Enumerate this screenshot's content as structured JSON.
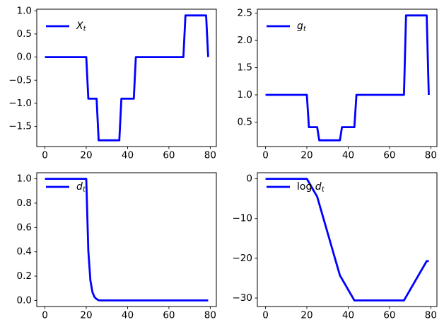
{
  "figure": {
    "background": "#ffffff",
    "line_color": "#0000ff",
    "axes_color": "#000000",
    "tick_color": "#000000"
  },
  "chart_shared_x": {
    "label": "t",
    "values": [
      0,
      1,
      2,
      3,
      4,
      5,
      6,
      7,
      8,
      9,
      10,
      11,
      12,
      13,
      14,
      15,
      16,
      17,
      18,
      19,
      20,
      21,
      22,
      23,
      24,
      25,
      26,
      27,
      28,
      29,
      30,
      31,
      32,
      33,
      34,
      35,
      36,
      37,
      38,
      39,
      40,
      41,
      42,
      43,
      44,
      45,
      46,
      47,
      48,
      49,
      50,
      51,
      52,
      53,
      54,
      55,
      56,
      57,
      58,
      59,
      60,
      61,
      62,
      63,
      64,
      65,
      66,
      67,
      68,
      69,
      70,
      71,
      72,
      73,
      74,
      75,
      76,
      77,
      78,
      79
    ]
  },
  "chart_data": [
    {
      "id": "Xt",
      "type": "line",
      "position": "top-left",
      "title": "",
      "xlabel": "",
      "ylabel": "",
      "legend": {
        "prefix": "",
        "variable": "X",
        "subscript": "t",
        "location": "upper left"
      },
      "grid": false,
      "xlim": [
        -3.95,
        82.95
      ],
      "ylim": [
        -1.935,
        1.035
      ],
      "xtick_values": [
        0,
        20,
        40,
        60,
        80
      ],
      "xtick_labels": [
        "0",
        "20",
        "40",
        "60",
        "80"
      ],
      "ytick_values": [
        1.0,
        0.5,
        0.0,
        -0.5,
        -1.0,
        -1.5
      ],
      "ytick_labels": [
        "1.0",
        "0.5",
        "0.0",
        "−0.5",
        "−1.0",
        "−1.5"
      ],
      "y": [
        0,
        0,
        0,
        0,
        0,
        0,
        0,
        0,
        0,
        0,
        0,
        0,
        0,
        0,
        0,
        0,
        0,
        0,
        0,
        0,
        0,
        -0.9,
        -0.9,
        -0.9,
        -0.9,
        -0.9,
        -1.8,
        -1.8,
        -1.8,
        -1.8,
        -1.8,
        -1.8,
        -1.8,
        -1.8,
        -1.8,
        -1.8,
        -1.8,
        -0.9,
        -0.9,
        -0.9,
        -0.9,
        -0.9,
        -0.9,
        -0.9,
        0,
        0,
        0,
        0,
        0,
        0,
        0,
        0,
        0,
        0,
        0,
        0,
        0,
        0,
        0,
        0,
        0,
        0,
        0,
        0,
        0,
        0,
        0,
        0,
        0.9,
        0.9,
        0.9,
        0.9,
        0.9,
        0.9,
        0.9,
        0.9,
        0.9,
        0.9,
        0.9,
        0
      ]
    },
    {
      "id": "gt",
      "type": "line",
      "position": "top-right",
      "title": "",
      "xlabel": "",
      "ylabel": "",
      "legend": {
        "prefix": "",
        "variable": "g",
        "subscript": "t",
        "location": "upper left"
      },
      "grid": false,
      "xlim": [
        -3.95,
        82.95
      ],
      "ylim": [
        0.0505,
        2.5744
      ],
      "xtick_values": [
        0,
        20,
        40,
        60,
        80
      ],
      "xtick_labels": [
        "0",
        "20",
        "40",
        "60",
        "80"
      ],
      "ytick_values": [
        2.5,
        2.0,
        1.5,
        1.0,
        0.5
      ],
      "ytick_labels": [
        "2.5",
        "2.0",
        "1.5",
        "1.0",
        "0.5"
      ],
      "y": [
        1,
        1,
        1,
        1,
        1,
        1,
        1,
        1,
        1,
        1,
        1,
        1,
        1,
        1,
        1,
        1,
        1,
        1,
        1,
        1,
        1,
        0.4066,
        0.4066,
        0.4066,
        0.4066,
        0.4066,
        0.1653,
        0.1653,
        0.1653,
        0.1653,
        0.1653,
        0.1653,
        0.1653,
        0.1653,
        0.1653,
        0.1653,
        0.1653,
        0.4066,
        0.4066,
        0.4066,
        0.4066,
        0.4066,
        0.4066,
        0.4066,
        1,
        1,
        1,
        1,
        1,
        1,
        1,
        1,
        1,
        1,
        1,
        1,
        1,
        1,
        1,
        1,
        1,
        1,
        1,
        1,
        1,
        1,
        1,
        1,
        2.4596,
        2.4596,
        2.4596,
        2.4596,
        2.4596,
        2.4596,
        2.4596,
        2.4596,
        2.4596,
        2.4596,
        2.4596,
        1
      ]
    },
    {
      "id": "dt",
      "type": "line",
      "position": "bottom-left",
      "title": "",
      "xlabel": "",
      "ylabel": "",
      "legend": {
        "prefix": "",
        "variable": "d",
        "subscript": "t",
        "location": "upper left"
      },
      "grid": false,
      "xlim": [
        -3.95,
        82.95
      ],
      "ylim": [
        -0.05,
        1.05
      ],
      "xtick_values": [
        0,
        20,
        40,
        60,
        80
      ],
      "xtick_labels": [
        "0",
        "20",
        "40",
        "60",
        "80"
      ],
      "ytick_values": [
        1.0,
        0.8,
        0.6,
        0.4,
        0.2,
        0.0
      ],
      "ytick_labels": [
        "1.0",
        "0.8",
        "0.6",
        "0.4",
        "0.2",
        "0.0"
      ],
      "y": [
        1,
        1,
        1,
        1,
        1,
        1,
        1,
        1,
        1,
        1,
        1,
        1,
        1,
        1,
        1,
        1,
        1,
        1,
        1,
        1,
        1,
        0.4066,
        0.1653,
        0.0672,
        0.0273,
        0.0111,
        0.0018,
        0.0003,
        0.0001,
        0,
        0,
        0,
        0,
        0,
        0,
        0,
        0,
        0,
        0,
        0,
        0,
        0,
        0,
        0,
        0,
        0,
        0,
        0,
        0,
        0,
        0,
        0,
        0,
        0,
        0,
        0,
        0,
        0,
        0,
        0,
        0,
        0,
        0,
        0,
        0,
        0,
        0,
        0,
        0,
        0,
        0,
        0,
        0,
        0,
        0,
        0,
        0,
        0,
        0,
        0
      ]
    },
    {
      "id": "logdt",
      "type": "line",
      "position": "bottom-right",
      "title": "",
      "xlabel": "",
      "ylabel": "",
      "legend": {
        "prefix": "log ",
        "variable": "d",
        "subscript": "t",
        "location": "upper left"
      },
      "grid": false,
      "xlim": [
        -3.95,
        82.95
      ],
      "ylim": [
        -32.13,
        1.53
      ],
      "xtick_values": [
        0,
        20,
        40,
        60,
        80
      ],
      "xtick_labels": [
        "0",
        "20",
        "40",
        "60",
        "80"
      ],
      "ytick_values": [
        0,
        -10,
        -20,
        -30
      ],
      "ytick_labels": [
        "0",
        "−10",
        "−20",
        "−30"
      ],
      "y": [
        0,
        0,
        0,
        0,
        0,
        0,
        0,
        0,
        0,
        0,
        0,
        0,
        0,
        0,
        0,
        0,
        0,
        0,
        0,
        0,
        0,
        -0.9,
        -1.8,
        -2.7,
        -3.6,
        -4.5,
        -6.3,
        -8.1,
        -9.9,
        -11.7,
        -13.5,
        -15.3,
        -17.1,
        -18.9,
        -20.7,
        -22.5,
        -24.3,
        -25.2,
        -26.1,
        -27,
        -27.9,
        -28.8,
        -29.7,
        -30.6,
        -30.6,
        -30.6,
        -30.6,
        -30.6,
        -30.6,
        -30.6,
        -30.6,
        -30.6,
        -30.6,
        -30.6,
        -30.6,
        -30.6,
        -30.6,
        -30.6,
        -30.6,
        -30.6,
        -30.6,
        -30.6,
        -30.6,
        -30.6,
        -30.6,
        -30.6,
        -30.6,
        -30.6,
        -29.7,
        -28.8,
        -27.9,
        -27,
        -26.1,
        -25.2,
        -24.3,
        -23.4,
        -22.5,
        -21.6,
        -20.7,
        -20.7
      ]
    }
  ]
}
